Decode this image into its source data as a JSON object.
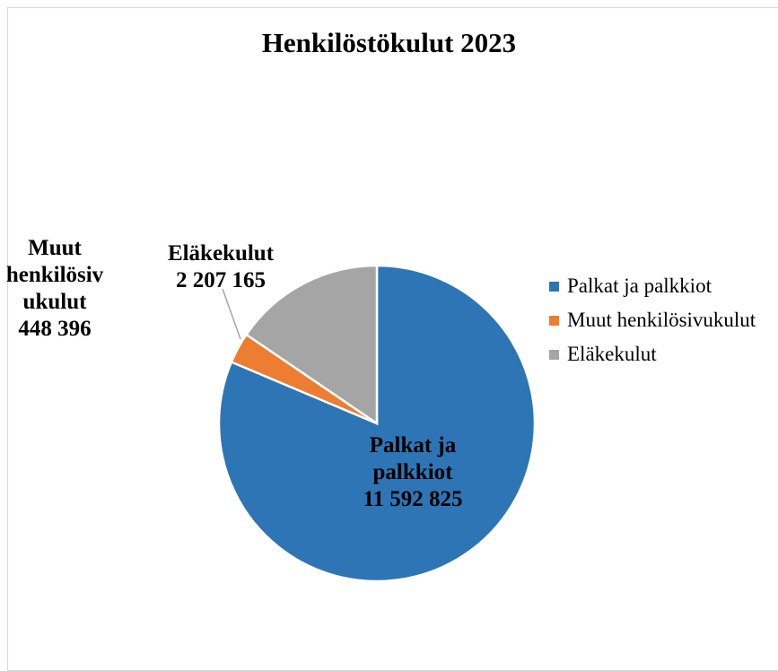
{
  "chart_data": {
    "type": "pie",
    "title": "Henkilöstökulut 2023",
    "categories": [
      "Palkat ja palkkiot",
      "Muut henkilösivukulut",
      "Eläkekulut"
    ],
    "values": [
      11592825,
      448396,
      2207165
    ],
    "value_labels": [
      "11 592 825",
      "448 396",
      "2 207 165"
    ],
    "colors": [
      "#2e75b6",
      "#ed7d31",
      "#a5a5a5"
    ],
    "legend": "right"
  }
}
